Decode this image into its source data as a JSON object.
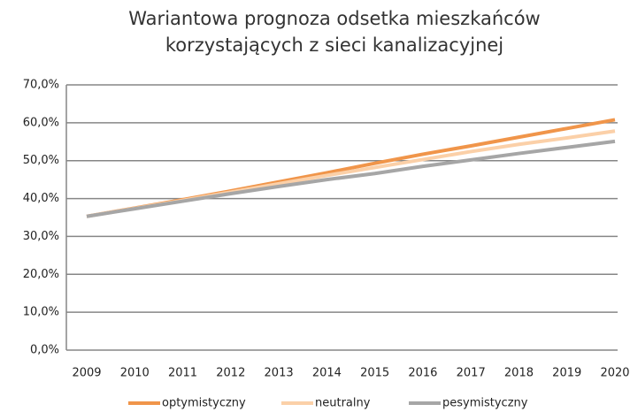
{
  "chart_data": {
    "type": "line",
    "title": [
      "Wariantowa prognoza odsetka mieszkańców",
      "korzystających z sieci kanalizacyjnej"
    ],
    "categories": [
      "2009",
      "2010",
      "2011",
      "2012",
      "2013",
      "2014",
      "2015",
      "2016",
      "2017",
      "2018",
      "2019",
      "2020"
    ],
    "series": [
      {
        "name": "optymistyczny",
        "color": "#f0954a",
        "values": [
          35.3,
          37.5,
          39.7,
          42.0,
          44.4,
          46.8,
          49.3,
          51.7,
          53.9,
          56.2,
          58.5,
          60.8
        ]
      },
      {
        "name": "neutralny",
        "color": "#fbd0a8",
        "values": [
          35.3,
          37.4,
          39.5,
          41.7,
          43.9,
          46.1,
          48.2,
          50.3,
          52.4,
          54.3,
          56.0,
          57.8
        ]
      },
      {
        "name": "pesymistyczny",
        "color": "#a6a6a6",
        "values": [
          35.3,
          37.3,
          39.3,
          41.3,
          43.2,
          45.0,
          46.6,
          48.5,
          50.2,
          51.9,
          53.5,
          55.1
        ]
      }
    ],
    "ylim": [
      0,
      70
    ],
    "yticks": [
      {
        "value": 0,
        "label": "0,0%"
      },
      {
        "value": 10,
        "label": "10,0%"
      },
      {
        "value": 20,
        "label": "20,0%"
      },
      {
        "value": 30,
        "label": "30,0%"
      },
      {
        "value": 40,
        "label": "40,0%"
      },
      {
        "value": 50,
        "label": "50,0%"
      },
      {
        "value": 60,
        "label": "60,0%"
      },
      {
        "value": 70,
        "label": "70,0%"
      }
    ],
    "grid": true,
    "legend": "bottom"
  }
}
